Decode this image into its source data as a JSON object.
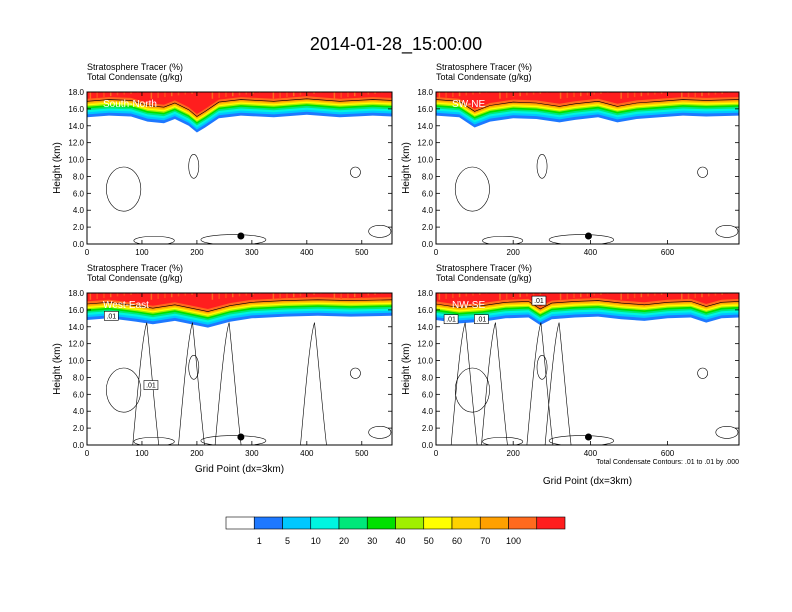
{
  "title": "2014-01-28_15:00:00",
  "chart_data": [
    {
      "type": "heatmap",
      "panel_label": "South-North",
      "header": [
        "Stratosphere Tracer   (%)",
        "Total Condensate   (g/kg)"
      ],
      "ylabel": "Height (km)",
      "xlabel": "",
      "xlim": [
        0,
        555
      ],
      "ylim": [
        0,
        18
      ],
      "xticks": [
        "0",
        "100",
        "200",
        "300",
        "400",
        "500"
      ],
      "yticks": [
        "0.0",
        "2.0",
        "4.0",
        "6.0",
        "8.0",
        "10.0",
        "12.0",
        "14.0",
        "16.0",
        "18.0"
      ],
      "marker_x": 280,
      "tropopause_km": [
        [
          0,
          15.0
        ],
        [
          40,
          15.2
        ],
        [
          80,
          15.1
        ],
        [
          110,
          14.5
        ],
        [
          140,
          14.3
        ],
        [
          160,
          14.8
        ],
        [
          185,
          14.0
        ],
        [
          200,
          13.2
        ],
        [
          215,
          13.8
        ],
        [
          240,
          14.9
        ],
        [
          280,
          15.2
        ],
        [
          340,
          15.0
        ],
        [
          400,
          15.3
        ],
        [
          460,
          15.0
        ],
        [
          520,
          15.2
        ],
        [
          555,
          15.1
        ]
      ],
      "contour_note": ""
    },
    {
      "type": "heatmap",
      "panel_label": "SW-NE",
      "header": [
        "Stratosphere Tracer   (%)",
        "Total Condensate   (g/kg)"
      ],
      "ylabel": "Height (km)",
      "xlabel": "",
      "xlim": [
        0,
        785
      ],
      "ylim": [
        0,
        18
      ],
      "xticks": [
        "0",
        "200",
        "400",
        "600"
      ],
      "yticks": [
        "0.0",
        "2.0",
        "4.0",
        "6.0",
        "8.0",
        "10.0",
        "12.0",
        "14.0",
        "16.0",
        "18.0"
      ],
      "marker_x": 395,
      "tropopause_km": [
        [
          0,
          15.2
        ],
        [
          60,
          15.0
        ],
        [
          100,
          13.8
        ],
        [
          140,
          14.5
        ],
        [
          200,
          14.9
        ],
        [
          260,
          14.8
        ],
        [
          320,
          14.4
        ],
        [
          360,
          14.7
        ],
        [
          420,
          15.0
        ],
        [
          470,
          14.4
        ],
        [
          520,
          14.8
        ],
        [
          580,
          15.0
        ],
        [
          640,
          15.2
        ],
        [
          700,
          15.1
        ],
        [
          785,
          15.2
        ]
      ],
      "contour_note": ""
    },
    {
      "type": "heatmap",
      "panel_label": "West-East",
      "header": [
        "Stratosphere Tracer   (%)",
        "Total Condensate   (g/kg)"
      ],
      "ylabel": "Height (km)",
      "xlabel": "Grid Point (dx=3km)",
      "xlim": [
        0,
        555
      ],
      "ylim": [
        0,
        18
      ],
      "xticks": [
        "0",
        "100",
        "200",
        "300",
        "400",
        "500"
      ],
      "yticks": [
        "0.0",
        "2.0",
        "4.0",
        "6.0",
        "8.0",
        "10.0",
        "12.0",
        "14.0",
        "16.0",
        "18.0"
      ],
      "marker_x": 280,
      "tropopause_km": [
        [
          0,
          14.8
        ],
        [
          40,
          15.0
        ],
        [
          90,
          14.6
        ],
        [
          120,
          14.3
        ],
        [
          160,
          14.7
        ],
        [
          220,
          13.9
        ],
        [
          260,
          14.6
        ],
        [
          300,
          15.0
        ],
        [
          360,
          15.2
        ],
        [
          420,
          15.3
        ],
        [
          480,
          15.2
        ],
        [
          555,
          15.3
        ]
      ],
      "contour_labels": [
        ".01",
        ".01"
      ],
      "contour_note": ""
    },
    {
      "type": "heatmap",
      "panel_label": "NW-SE",
      "header": [
        "Stratosphere Tracer   (%)",
        "Total Condensate   (g/kg)"
      ],
      "ylabel": "Height (km)",
      "xlabel": "Grid Point (dx=3km)",
      "xlim": [
        0,
        785
      ],
      "ylim": [
        0,
        18
      ],
      "xticks": [
        "0",
        "200",
        "400",
        "600"
      ],
      "yticks": [
        "0.0",
        "2.0",
        "4.0",
        "6.0",
        "8.0",
        "10.0",
        "12.0",
        "14.0",
        "16.0",
        "18.0"
      ],
      "marker_x": 395,
      "tropopause_km": [
        [
          0,
          14.8
        ],
        [
          60,
          14.4
        ],
        [
          120,
          14.6
        ],
        [
          180,
          15.0
        ],
        [
          240,
          15.1
        ],
        [
          270,
          14.2
        ],
        [
          300,
          14.9
        ],
        [
          360,
          15.1
        ],
        [
          420,
          15.2
        ],
        [
          480,
          14.9
        ],
        [
          540,
          14.7
        ],
        [
          600,
          15.0
        ],
        [
          660,
          15.1
        ],
        [
          700,
          14.5
        ],
        [
          740,
          15.0
        ],
        [
          785,
          15.1
        ]
      ],
      "contour_labels": [
        ".01",
        ".01",
        ".01"
      ],
      "contour_note": "Total Condensate Contours: .01 to .01 by .000"
    }
  ],
  "colorbar": {
    "colors": [
      "#ffffff",
      "#1e78ff",
      "#00c8ff",
      "#00f5e0",
      "#00e87a",
      "#00e000",
      "#a0f000",
      "#ffff00",
      "#ffd200",
      "#ffa000",
      "#ff6a1e",
      "#ff1e1e"
    ],
    "labels": [
      "1",
      "5",
      "10",
      "20",
      "30",
      "40",
      "50",
      "60",
      "70",
      "100"
    ]
  }
}
